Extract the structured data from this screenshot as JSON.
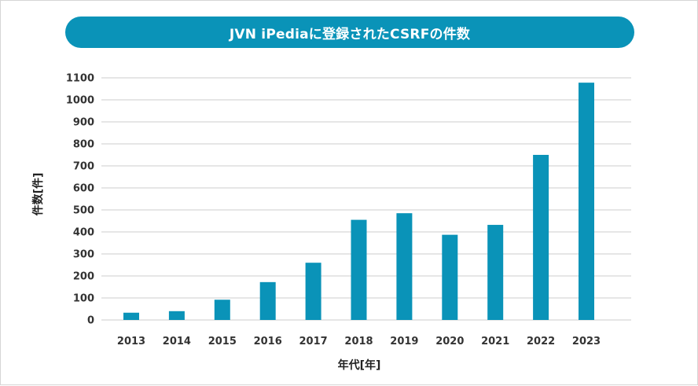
{
  "header": {
    "title": "JVN iPediaに登録されたCSRFの件数"
  },
  "colors": {
    "accent": "#0a93b8",
    "bar": "#0a93b8",
    "grid": "#cccccc"
  },
  "chart_data": {
    "type": "bar",
    "title": "JVN iPediaに登録されたCSRFの件数",
    "xlabel": "年代[年]",
    "ylabel": "件数[件]",
    "categories": [
      "2013",
      "2014",
      "2015",
      "2016",
      "2017",
      "2018",
      "2019",
      "2020",
      "2021",
      "2022",
      "2023"
    ],
    "values": [
      33,
      40,
      92,
      172,
      260,
      455,
      485,
      387,
      432,
      750,
      1078
    ],
    "ylim": [
      0,
      1100
    ],
    "yticks": [
      "0",
      "100",
      "200",
      "300",
      "400",
      "500",
      "600",
      "700",
      "800",
      "900",
      "1000",
      "1100"
    ],
    "grid": true,
    "legend": "none"
  }
}
